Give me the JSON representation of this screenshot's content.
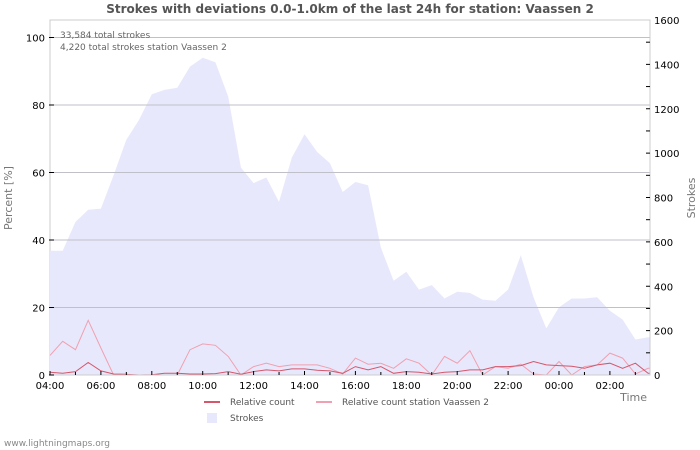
{
  "chart_data": {
    "type": "line",
    "title": "Strokes with deviations 0.0-1.0km of the last 24h for station: Vaassen 2",
    "xlabel": "Time",
    "ylabel_left": "Percent   [%]",
    "ylabel_right": "Strokes",
    "ylim_left": [
      0,
      100
    ],
    "ylim_right": [
      0,
      1600
    ],
    "yticks_left": [
      0,
      20,
      40,
      60,
      80,
      100
    ],
    "yticks_right": [
      0,
      200,
      400,
      600,
      800,
      1000,
      1200,
      1400,
      1600
    ],
    "xtick_labels": [
      "04:00",
      "06:00",
      "08:00",
      "10:00",
      "12:00",
      "14:00",
      "16:00",
      "18:00",
      "20:00",
      "22:00",
      "00:00",
      "02:00"
    ],
    "grid": true,
    "legend_position": "bottom",
    "annotations": [
      "33,584 total strokes",
      "4,220 total strokes station Vaassen 2"
    ],
    "x": [
      "04:00",
      "04:30",
      "05:00",
      "05:30",
      "06:00",
      "06:30",
      "07:00",
      "07:30",
      "08:00",
      "08:30",
      "09:00",
      "09:30",
      "10:00",
      "10:30",
      "11:00",
      "11:30",
      "12:00",
      "12:30",
      "13:00",
      "13:30",
      "14:00",
      "14:30",
      "15:00",
      "15:30",
      "16:00",
      "16:30",
      "17:00",
      "17:30",
      "18:00",
      "18:30",
      "19:00",
      "19:30",
      "20:00",
      "20:30",
      "21:00",
      "21:30",
      "22:00",
      "22:30",
      "23:00",
      "23:30",
      "00:00",
      "00:30",
      "01:00",
      "01:30",
      "02:00",
      "02:30",
      "03:00",
      "03:30"
    ],
    "series": [
      {
        "name": "Strokes",
        "type": "area",
        "axis": "right",
        "color": "#e8e8fc",
        "values": [
          560,
          560,
          690,
          745,
          750,
          900,
          1060,
          1150,
          1265,
          1285,
          1295,
          1390,
          1430,
          1410,
          1255,
          935,
          865,
          890,
          780,
          980,
          1085,
          1005,
          955,
          825,
          870,
          855,
          575,
          425,
          465,
          385,
          405,
          345,
          375,
          370,
          340,
          335,
          385,
          540,
          350,
          210,
          305,
          345,
          345,
          350,
          290,
          250,
          160,
          170
        ]
      },
      {
        "name": "Relative count",
        "type": "line",
        "axis": "left",
        "color": "#d6566b",
        "values": [
          0.8,
          0.5,
          1.0,
          3.7,
          1.2,
          0.3,
          0.2,
          0.0,
          0.1,
          0.5,
          0.5,
          0.3,
          0.3,
          0.4,
          1.0,
          0.2,
          1.0,
          1.5,
          1.2,
          1.8,
          1.8,
          1.4,
          1.2,
          0.5,
          2.5,
          1.5,
          2.5,
          0.5,
          1.0,
          0.8,
          0.3,
          0.8,
          1.0,
          1.5,
          1.5,
          2.5,
          2.5,
          2.8,
          4.0,
          3.0,
          2.8,
          2.6,
          2.0,
          3.0,
          3.5,
          2.0,
          3.5,
          0.5
        ]
      },
      {
        "name": "Relative count station Vaassen 2",
        "type": "line",
        "axis": "left",
        "color": "#f0a0b0",
        "values": [
          5.8,
          10.0,
          7.5,
          16.2,
          8.0,
          0.0,
          0.0,
          0.0,
          0.0,
          0.0,
          0.0,
          7.5,
          9.2,
          8.8,
          5.5,
          0.0,
          2.5,
          3.5,
          2.5,
          3.0,
          3.0,
          3.0,
          2.0,
          0.3,
          5.0,
          3.2,
          3.5,
          2.0,
          4.8,
          3.5,
          0.0,
          5.5,
          3.5,
          7.2,
          0.0,
          2.5,
          2.0,
          3.2,
          0.3,
          0.0,
          4.0,
          0.0,
          2.5,
          3.0,
          6.5,
          5.0,
          0.3,
          2.0
        ]
      }
    ]
  },
  "header": {
    "title": "Strokes with deviations 0.0-1.0km of the last 24h for station: Vaassen 2"
  },
  "annotations": {
    "total": "33,584 total strokes",
    "station_total": "4,220 total strokes station Vaassen 2"
  },
  "axes": {
    "left_label": "Percent   [%]",
    "right_label": "Strokes",
    "x_label": "Time",
    "left_ticks": [
      "0",
      "20",
      "40",
      "60",
      "80",
      "100"
    ],
    "right_ticks": [
      "0",
      "200",
      "400",
      "600",
      "800",
      "1000",
      "1200",
      "1400",
      "1600"
    ],
    "x_ticks": [
      "04:00",
      "06:00",
      "08:00",
      "10:00",
      "12:00",
      "14:00",
      "16:00",
      "18:00",
      "20:00",
      "22:00",
      "00:00",
      "02:00"
    ]
  },
  "legend": {
    "relative_count": "Relative count",
    "relative_count_station": "Relative count station Vaassen 2",
    "strokes": "Strokes"
  },
  "colors": {
    "area": "#e8e8fc",
    "relative_count": "#d6566b",
    "relative_count_station": "#f0a0b0",
    "grid": "#c0c0c0",
    "axis": "#cccccc"
  },
  "footer": {
    "source": "www.lightningmaps.org"
  }
}
